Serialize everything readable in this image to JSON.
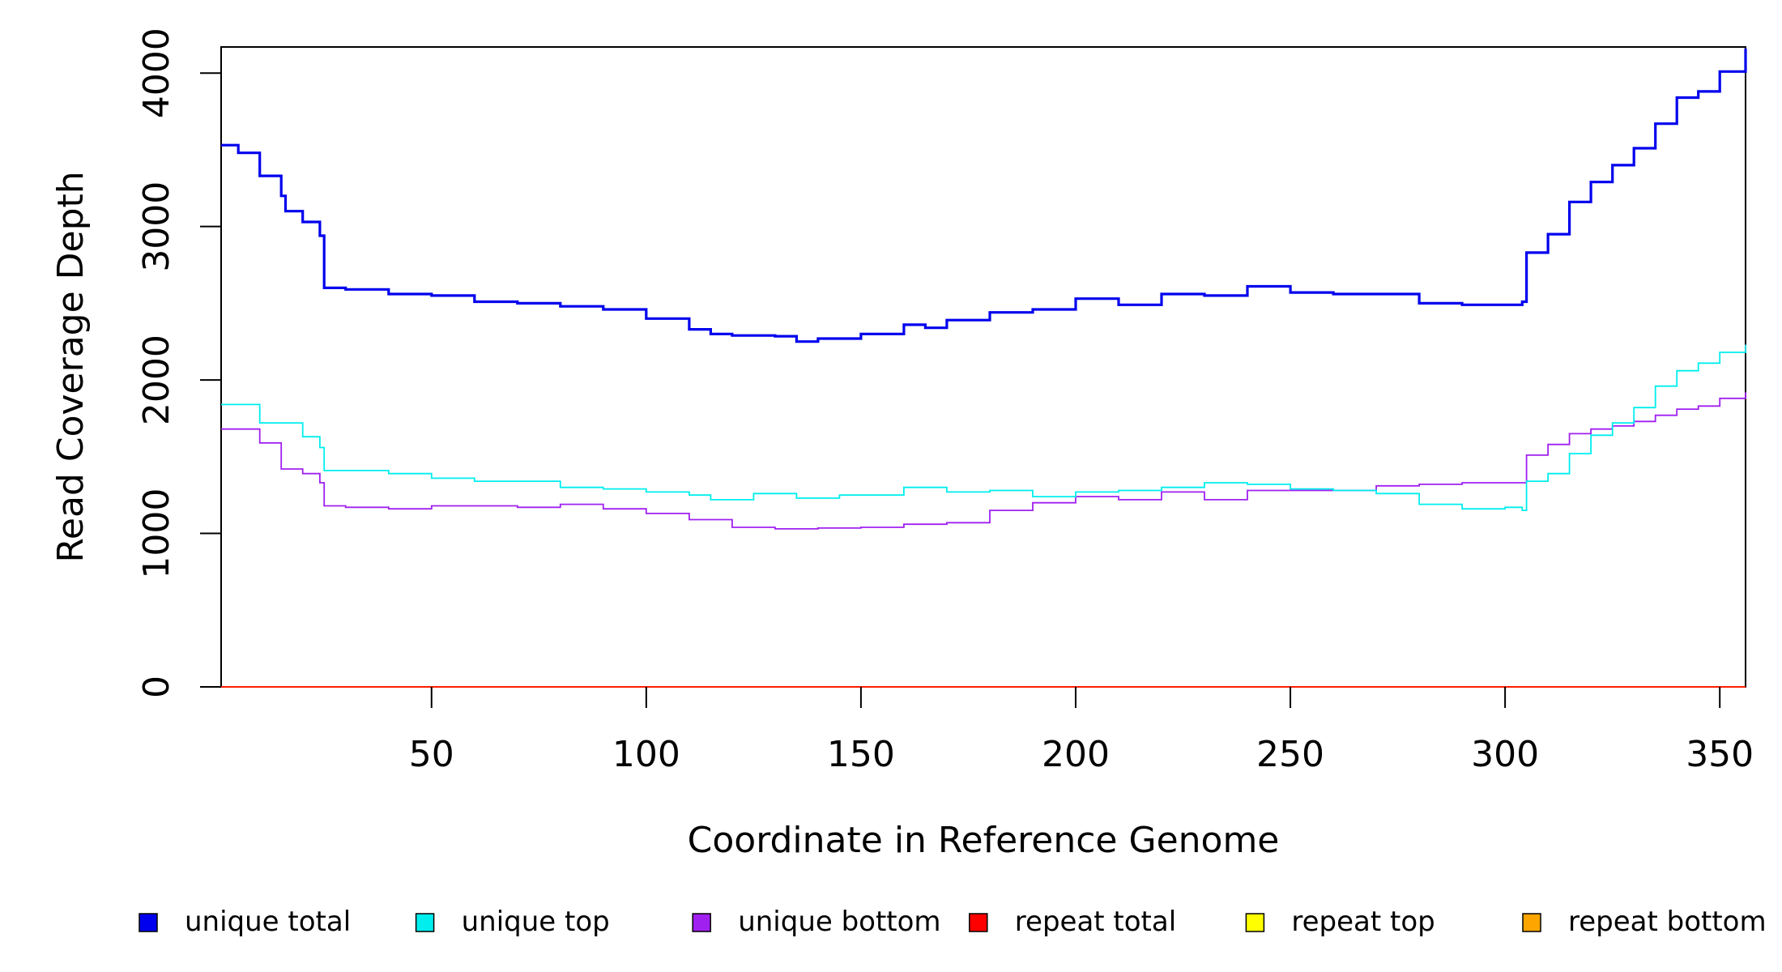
{
  "chart_data": {
    "type": "line",
    "title": "",
    "xlabel": "Coordinate in Reference Genome",
    "ylabel": "Read Coverage Depth",
    "xlim": [
      1,
      356
    ],
    "ylim": [
      0,
      4170
    ],
    "x_ticks": [
      50,
      100,
      150,
      200,
      250,
      300,
      350
    ],
    "y_ticks": [
      0,
      1000,
      2000,
      3000,
      4000
    ],
    "grid": false,
    "legend": "bottom",
    "series": [
      {
        "name": "unique total",
        "color": "#0000ee",
        "points": [
          [
            1,
            3530
          ],
          [
            5,
            3480
          ],
          [
            10,
            3330
          ],
          [
            15,
            3200
          ],
          [
            16,
            3100
          ],
          [
            20,
            3030
          ],
          [
            24,
            2940
          ],
          [
            25,
            2600
          ],
          [
            30,
            2590
          ],
          [
            40,
            2560
          ],
          [
            50,
            2550
          ],
          [
            60,
            2510
          ],
          [
            70,
            2500
          ],
          [
            80,
            2480
          ],
          [
            90,
            2460
          ],
          [
            100,
            2400
          ],
          [
            110,
            2330
          ],
          [
            115,
            2300
          ],
          [
            120,
            2290
          ],
          [
            130,
            2285
          ],
          [
            135,
            2250
          ],
          [
            140,
            2270
          ],
          [
            150,
            2300
          ],
          [
            160,
            2360
          ],
          [
            165,
            2340
          ],
          [
            170,
            2390
          ],
          [
            180,
            2440
          ],
          [
            190,
            2460
          ],
          [
            200,
            2530
          ],
          [
            210,
            2490
          ],
          [
            220,
            2560
          ],
          [
            230,
            2550
          ],
          [
            240,
            2610
          ],
          [
            250,
            2570
          ],
          [
            260,
            2560
          ],
          [
            270,
            2560
          ],
          [
            280,
            2500
          ],
          [
            290,
            2490
          ],
          [
            300,
            2490
          ],
          [
            304,
            2510
          ],
          [
            305,
            2830
          ],
          [
            310,
            2950
          ],
          [
            315,
            3160
          ],
          [
            320,
            3290
          ],
          [
            325,
            3400
          ],
          [
            330,
            3510
          ],
          [
            335,
            3670
          ],
          [
            340,
            3840
          ],
          [
            345,
            3880
          ],
          [
            350,
            4010
          ],
          [
            356,
            4160
          ]
        ]
      },
      {
        "name": "unique top",
        "color": "#00eeee",
        "points": [
          [
            1,
            1840
          ],
          [
            10,
            1720
          ],
          [
            20,
            1630
          ],
          [
            24,
            1560
          ],
          [
            25,
            1410
          ],
          [
            40,
            1390
          ],
          [
            50,
            1360
          ],
          [
            60,
            1340
          ],
          [
            70,
            1340
          ],
          [
            80,
            1300
          ],
          [
            90,
            1290
          ],
          [
            100,
            1270
          ],
          [
            110,
            1250
          ],
          [
            115,
            1220
          ],
          [
            125,
            1260
          ],
          [
            135,
            1230
          ],
          [
            145,
            1250
          ],
          [
            160,
            1300
          ],
          [
            170,
            1270
          ],
          [
            180,
            1280
          ],
          [
            190,
            1240
          ],
          [
            200,
            1270
          ],
          [
            210,
            1280
          ],
          [
            220,
            1300
          ],
          [
            230,
            1330
          ],
          [
            240,
            1320
          ],
          [
            250,
            1290
          ],
          [
            260,
            1280
          ],
          [
            270,
            1260
          ],
          [
            280,
            1190
          ],
          [
            290,
            1160
          ],
          [
            300,
            1170
          ],
          [
            304,
            1150
          ],
          [
            305,
            1340
          ],
          [
            310,
            1390
          ],
          [
            315,
            1520
          ],
          [
            320,
            1640
          ],
          [
            325,
            1720
          ],
          [
            330,
            1820
          ],
          [
            335,
            1960
          ],
          [
            340,
            2060
          ],
          [
            345,
            2110
          ],
          [
            350,
            2180
          ],
          [
            356,
            2230
          ]
        ]
      },
      {
        "name": "unique bottom",
        "color": "#a020f0",
        "points": [
          [
            1,
            1680
          ],
          [
            10,
            1590
          ],
          [
            15,
            1420
          ],
          [
            20,
            1390
          ],
          [
            24,
            1330
          ],
          [
            25,
            1180
          ],
          [
            30,
            1170
          ],
          [
            40,
            1160
          ],
          [
            50,
            1180
          ],
          [
            60,
            1180
          ],
          [
            70,
            1170
          ],
          [
            80,
            1190
          ],
          [
            90,
            1160
          ],
          [
            100,
            1130
          ],
          [
            110,
            1090
          ],
          [
            120,
            1040
          ],
          [
            130,
            1030
          ],
          [
            140,
            1035
          ],
          [
            150,
            1040
          ],
          [
            160,
            1060
          ],
          [
            170,
            1070
          ],
          [
            180,
            1150
          ],
          [
            190,
            1200
          ],
          [
            200,
            1240
          ],
          [
            210,
            1220
          ],
          [
            220,
            1270
          ],
          [
            230,
            1220
          ],
          [
            240,
            1280
          ],
          [
            250,
            1280
          ],
          [
            260,
            1280
          ],
          [
            270,
            1310
          ],
          [
            280,
            1320
          ],
          [
            290,
            1330
          ],
          [
            300,
            1330
          ],
          [
            304,
            1330
          ],
          [
            305,
            1510
          ],
          [
            310,
            1580
          ],
          [
            315,
            1650
          ],
          [
            320,
            1680
          ],
          [
            325,
            1700
          ],
          [
            330,
            1730
          ],
          [
            335,
            1770
          ],
          [
            340,
            1810
          ],
          [
            345,
            1830
          ],
          [
            350,
            1880
          ],
          [
            356,
            1920
          ]
        ]
      },
      {
        "name": "repeat total",
        "color": "#ff0000",
        "points": [
          [
            1,
            0
          ],
          [
            356,
            0
          ]
        ]
      },
      {
        "name": "repeat top",
        "color": "#ffff00",
        "points": [
          [
            1,
            0
          ],
          [
            356,
            0
          ]
        ]
      },
      {
        "name": "repeat bottom",
        "color": "#ffa500",
        "points": [
          [
            1,
            0
          ],
          [
            356,
            0
          ]
        ]
      }
    ]
  }
}
